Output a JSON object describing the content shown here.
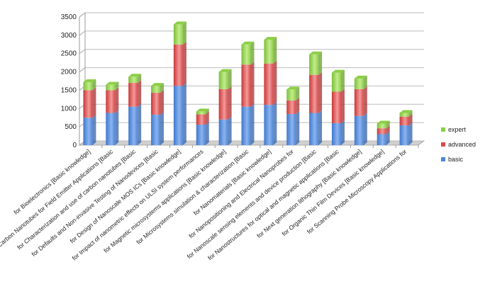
{
  "chart_data": {
    "type": "bar",
    "stacked": true,
    "title": "",
    "xlabel": "",
    "ylabel": "",
    "ylim": [
      0,
      3500
    ],
    "yticks": [
      0,
      500,
      1000,
      1500,
      2000,
      2500,
      3000,
      3500
    ],
    "grid": true,
    "legend_position": "right",
    "categories": [
      "for Bioelectronics [Basic knowledge]",
      "Carbon Nanotubes for Field Emitter  Applications [Basic",
      "for Characterization and use of carbon nanotubes [Basic",
      "for Defaults and Non-invasive Testing of Nanodevices [Basic",
      "for Design of Nanoscale MOS ICs [Basic knowledge]",
      "for Impact of nanometric effects on ULSI system performances",
      "for Magnetic microsystems applications [Basic knowledge]",
      "for Microsystems simulation  & characterization [Basic",
      "for Nanomaterials [Basic knowledge]",
      "for Nanopositioning and Electrical Nanoprobes for",
      "for Nanoscale sensing elements and device production [Basic",
      "for Nanostructures for optical and magnetic applications [Basic",
      "for Next generation lithography [Basic knowledge]",
      "for Organic Thin Film Devices [Basic knowledge]",
      "for Scanning Probe Microscopy Applications for"
    ],
    "series": [
      {
        "name": "basic",
        "color": "#4f86d9",
        "values": [
          750,
          880,
          1050,
          830,
          1620,
          560,
          700,
          1050,
          1100,
          850,
          880,
          600,
          800,
          300,
          540
        ]
      },
      {
        "name": "advanced",
        "color": "#d94848",
        "values": [
          750,
          620,
          650,
          600,
          1130,
          280,
          830,
          1150,
          1130,
          370,
          1040,
          860,
          730,
          160,
          240
        ]
      },
      {
        "name": "expert",
        "color": "#8ccf45",
        "values": [
          220,
          150,
          170,
          190,
          550,
          80,
          470,
          550,
          650,
          300,
          560,
          520,
          290,
          130,
          100
        ]
      }
    ],
    "legend": [
      "expert",
      "advanced",
      "basic"
    ]
  }
}
